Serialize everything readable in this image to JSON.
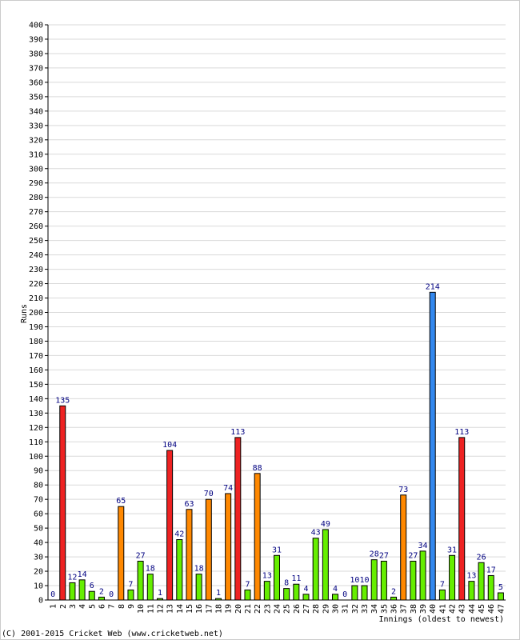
{
  "chart_data": {
    "type": "bar",
    "xlabel": "Innings (oldest to newest)",
    "ylabel": "Runs",
    "ylim": [
      0,
      400
    ],
    "ytick_step": 10,
    "grid": true,
    "categories": [
      "1",
      "2",
      "3",
      "4",
      "5",
      "6",
      "7",
      "8",
      "9",
      "10",
      "11",
      "12",
      "13",
      "14",
      "15",
      "16",
      "17",
      "18",
      "19",
      "20",
      "21",
      "22",
      "23",
      "24",
      "25",
      "26",
      "27",
      "28",
      "29",
      "30",
      "31",
      "32",
      "33",
      "34",
      "35",
      "36",
      "37",
      "38",
      "39",
      "40",
      "41",
      "42",
      "43",
      "44",
      "45",
      "46",
      "47"
    ],
    "values": [
      0,
      135,
      12,
      14,
      6,
      2,
      0,
      65,
      7,
      27,
      18,
      1,
      104,
      42,
      63,
      18,
      70,
      1,
      74,
      113,
      7,
      88,
      13,
      31,
      8,
      11,
      4,
      43,
      49,
      4,
      0,
      10,
      10,
      28,
      27,
      2,
      73,
      27,
      34,
      214,
      7,
      31,
      113,
      13,
      26,
      17,
      5
    ],
    "colors": {
      "score_under_50": "#66ee00",
      "score_50_to_99": "#ff8800",
      "score_100_to_199": "#ee2222",
      "score_200_plus": "#3388ee"
    }
  },
  "footer": {
    "copyright": "(C) 2001-2015 Cricket Web (www.cricketweb.net)"
  }
}
